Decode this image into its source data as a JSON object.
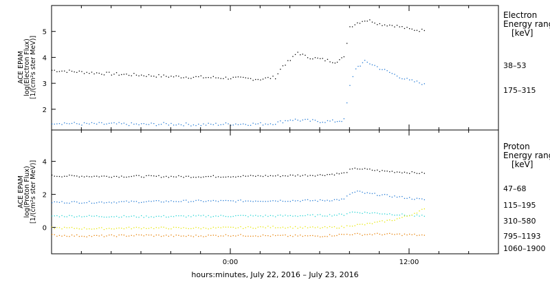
{
  "chart_data": [
    {
      "type": "scatter",
      "panel": "electron",
      "ylabel_lines": [
        "ACE EPAM",
        "log(Electron Flux)",
        "[1/(cm²s ster MeV)]"
      ],
      "ylim": [
        1.2,
        6.0
      ],
      "yticks": [
        2,
        3,
        4,
        5
      ],
      "legend_title_lines": [
        "Electron",
        "Energy ranges"
      ],
      "legend_unit": "[keV]",
      "grid": false,
      "series": [
        {
          "name": "38–53",
          "color": "#000000",
          "points": [
            [
              -12,
              3.52
            ],
            [
              -10,
              3.45
            ],
            [
              -8,
              3.38
            ],
            [
              -6,
              3.33
            ],
            [
              -4,
              3.28
            ],
            [
              -2,
              3.25
            ],
            [
              0,
              3.22
            ],
            [
              2,
              3.18
            ],
            [
              3,
              3.25
            ],
            [
              3.5,
              3.7
            ],
            [
              4,
              3.9
            ],
            [
              4.5,
              4.22
            ],
            [
              5,
              4.05
            ],
            [
              6,
              3.95
            ],
            [
              7,
              3.85
            ],
            [
              7.6,
              4.0
            ],
            [
              8,
              5.2
            ],
            [
              8.5,
              5.35
            ],
            [
              9,
              5.45
            ],
            [
              9.5,
              5.42
            ],
            [
              10,
              5.3
            ],
            [
              11,
              5.25
            ],
            [
              12,
              5.1
            ],
            [
              13,
              5.05
            ]
          ]
        },
        {
          "name": "175–315",
          "color": "#1f77d4",
          "points": [
            [
              -12,
              1.5
            ],
            [
              -10,
              1.45
            ],
            [
              -8,
              1.45
            ],
            [
              -6,
              1.43
            ],
            [
              -4,
              1.45
            ],
            [
              -2,
              1.42
            ],
            [
              0,
              1.45
            ],
            [
              2,
              1.45
            ],
            [
              3,
              1.48
            ],
            [
              4,
              1.62
            ],
            [
              5,
              1.58
            ],
            [
              6,
              1.55
            ],
            [
              7,
              1.55
            ],
            [
              7.6,
              1.6
            ],
            [
              8,
              2.9
            ],
            [
              8.4,
              3.6
            ],
            [
              9,
              3.85
            ],
            [
              9.5,
              3.75
            ],
            [
              10,
              3.6
            ],
            [
              11,
              3.35
            ],
            [
              12,
              3.12
            ],
            [
              13,
              3.0
            ]
          ]
        }
      ]
    },
    {
      "type": "scatter",
      "panel": "proton",
      "ylabel_lines": [
        "ACE EPAM",
        "log(Proton Flux)",
        "[1/(cm²s ster MeV)]"
      ],
      "ylim": [
        -1.6,
        5.9
      ],
      "yticks": [
        0,
        2,
        4
      ],
      "legend_title_lines": [
        "Proton",
        "Energy ranges"
      ],
      "legend_unit": "[keV]",
      "grid": false,
      "series": [
        {
          "name": "47–68",
          "color": "#000000",
          "points": [
            [
              -12,
              3.15
            ],
            [
              -9,
              3.12
            ],
            [
              -6,
              3.12
            ],
            [
              -3,
              3.1
            ],
            [
              0,
              3.12
            ],
            [
              3,
              3.15
            ],
            [
              6,
              3.2
            ],
            [
              7.6,
              3.3
            ],
            [
              8,
              3.5
            ],
            [
              8.5,
              3.6
            ],
            [
              9,
              3.55
            ],
            [
              10,
              3.45
            ],
            [
              11,
              3.4
            ],
            [
              12,
              3.35
            ],
            [
              13,
              3.3
            ]
          ]
        },
        {
          "name": "115–195",
          "color": "#1f77d4",
          "points": [
            [
              -12,
              1.55
            ],
            [
              -9,
              1.55
            ],
            [
              -6,
              1.58
            ],
            [
              -3,
              1.62
            ],
            [
              0,
              1.62
            ],
            [
              3,
              1.65
            ],
            [
              6,
              1.65
            ],
            [
              7.6,
              1.72
            ],
            [
              8,
              2.05
            ],
            [
              8.5,
              2.2
            ],
            [
              9,
              2.1
            ],
            [
              10,
              2.0
            ],
            [
              11,
              1.9
            ],
            [
              12,
              1.8
            ],
            [
              13,
              1.7
            ]
          ]
        },
        {
          "name": "310–580",
          "color": "#22d3d3",
          "points": [
            [
              -12,
              0.72
            ],
            [
              -9,
              0.7
            ],
            [
              -6,
              0.68
            ],
            [
              -3,
              0.7
            ],
            [
              0,
              0.72
            ],
            [
              3,
              0.72
            ],
            [
              6,
              0.75
            ],
            [
              7.6,
              0.8
            ],
            [
              8,
              0.95
            ],
            [
              9,
              0.92
            ],
            [
              10,
              0.88
            ],
            [
              11,
              0.82
            ],
            [
              12,
              0.75
            ],
            [
              13,
              0.7
            ]
          ]
        },
        {
          "name": "795–1193",
          "color": "#e6e600",
          "points": [
            [
              -12,
              0.0
            ],
            [
              -9,
              -0.05
            ],
            [
              -6,
              0.0
            ],
            [
              -3,
              -0.02
            ],
            [
              0,
              0.0
            ],
            [
              3,
              0.05
            ],
            [
              6,
              0.0
            ],
            [
              7.6,
              0.05
            ],
            [
              8,
              0.15
            ],
            [
              9,
              0.2
            ],
            [
              10,
              0.35
            ],
            [
              11,
              0.5
            ],
            [
              12,
              0.75
            ],
            [
              13,
              1.15
            ]
          ]
        },
        {
          "name": "1060–1900",
          "color": "#e67e00",
          "points": [
            [
              -12,
              -0.45
            ],
            [
              -9,
              -0.5
            ],
            [
              -6,
              -0.45
            ],
            [
              -3,
              -0.5
            ],
            [
              0,
              -0.45
            ],
            [
              3,
              -0.48
            ],
            [
              6,
              -0.5
            ],
            [
              7.6,
              -0.4
            ],
            [
              8,
              -0.38
            ],
            [
              9,
              -0.4
            ],
            [
              10,
              -0.38
            ],
            [
              11,
              -0.4
            ],
            [
              12,
              -0.42
            ],
            [
              13,
              -0.45
            ]
          ]
        }
      ]
    }
  ],
  "x_axis": {
    "label": "hours:minutes, July 22, 2016 – July 23, 2016",
    "xlim": [
      -12,
      18
    ],
    "tick_labels": [
      {
        "value": 0,
        "label": "0:00"
      },
      {
        "value": 12,
        "label": "12:00"
      }
    ]
  }
}
